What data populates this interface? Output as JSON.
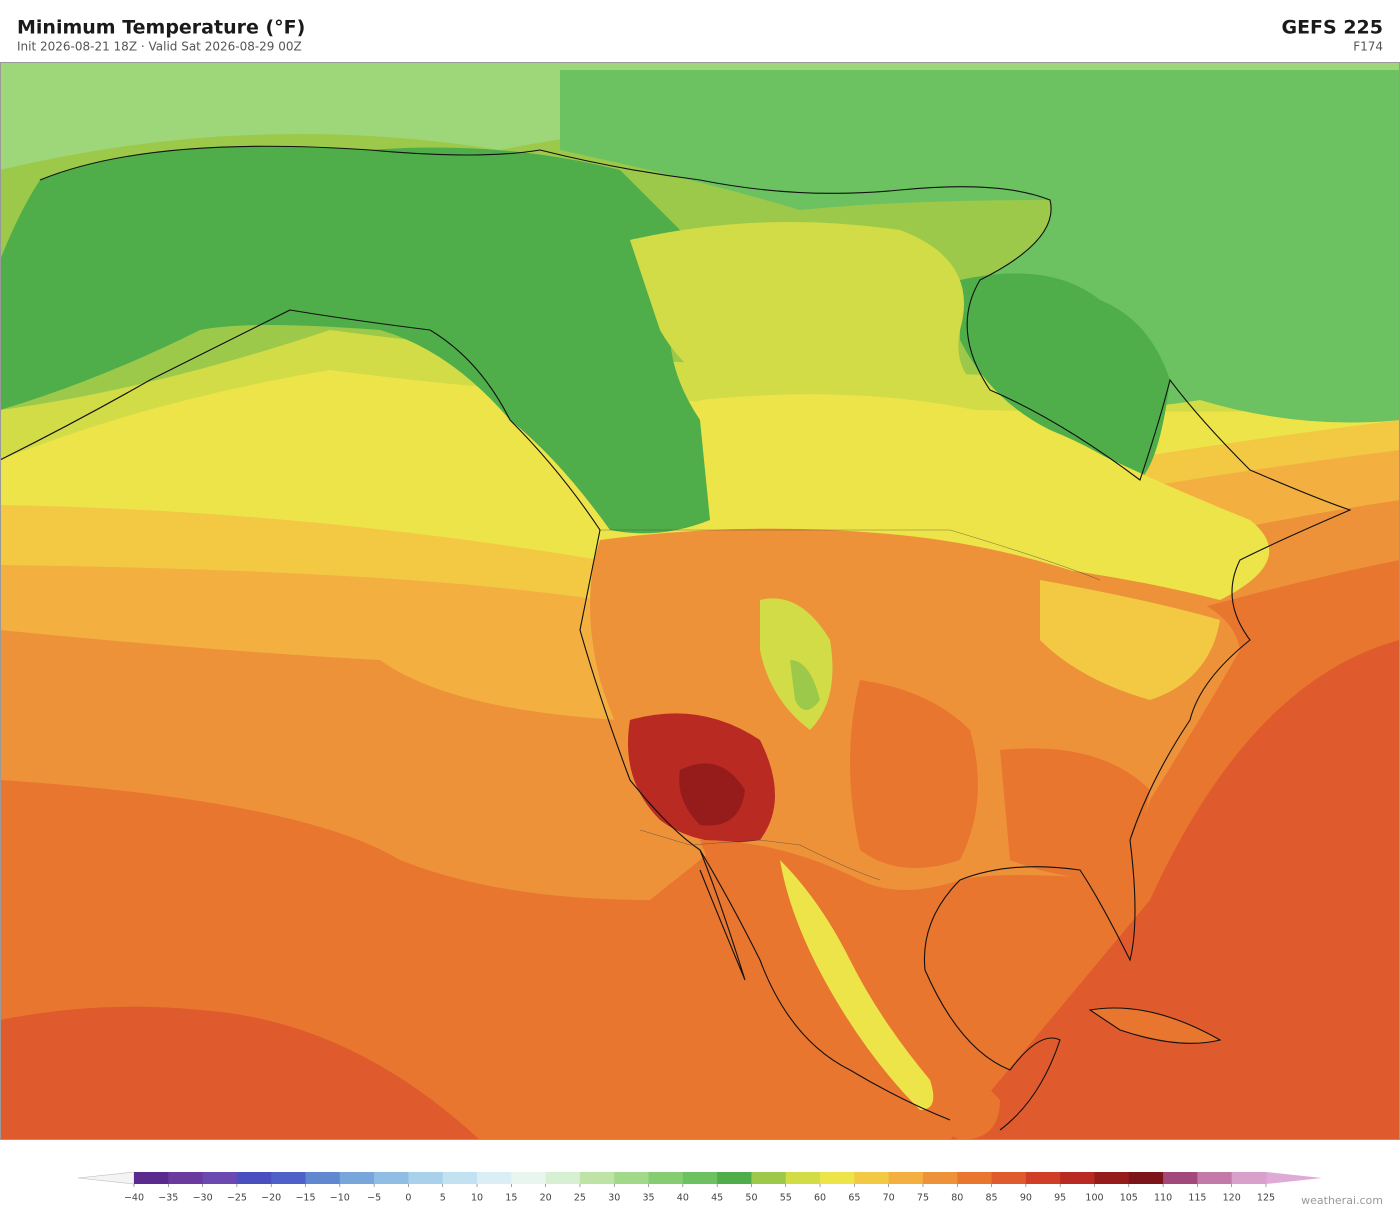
{
  "header": {
    "title": "Minimum Temperature  (°F)",
    "subtitle": "Init 2026-08-21 18Z  ·  Valid Sat 2026-08-29 00Z",
    "model": "GEFS  225",
    "forecast_hour": "F174"
  },
  "colorbar": {
    "ticks": [
      {
        "value": -40,
        "label": "−40"
      },
      {
        "value": -35,
        "label": "−35"
      },
      {
        "value": -30,
        "label": "−30"
      },
      {
        "value": -25,
        "label": "−25"
      },
      {
        "value": -20,
        "label": "−20"
      },
      {
        "value": -15,
        "label": "−15"
      },
      {
        "value": -10,
        "label": "−10"
      },
      {
        "value": -5,
        "label": "−5"
      },
      0,
      5,
      10,
      15,
      20,
      25,
      30,
      35,
      40,
      45,
      50,
      55,
      60,
      65,
      70,
      75,
      80,
      85,
      90,
      95,
      100,
      105,
      110,
      115,
      120,
      125
    ],
    "colors": [
      "#5b2a8e",
      "#6a3a9e",
      "#6a4ab0",
      "#4a4fc0",
      "#4e61c8",
      "#5f88d0",
      "#78a6da",
      "#8fbde4",
      "#a9d1ec",
      "#c3e2f1",
      "#dbeef5",
      "#e9f5ef",
      "#d7efd2",
      "#bde3a6",
      "#a2d88a",
      "#86cd72",
      "#6cc160",
      "#4fae4a",
      "#9cc94a",
      "#d2dc47",
      "#ede44a",
      "#f3c944",
      "#f3b040",
      "#ee923a",
      "#e8762f",
      "#df5a2c",
      "#d13e27",
      "#b82a22",
      "#961c1c",
      "#7c1519",
      "#a3487a",
      "#c47aa8",
      "#d9a0cc"
    ],
    "under_color": "#f4f4f4",
    "over_color": "#e0aad6"
  },
  "footer": {
    "credit": "weatherai.com"
  }
}
